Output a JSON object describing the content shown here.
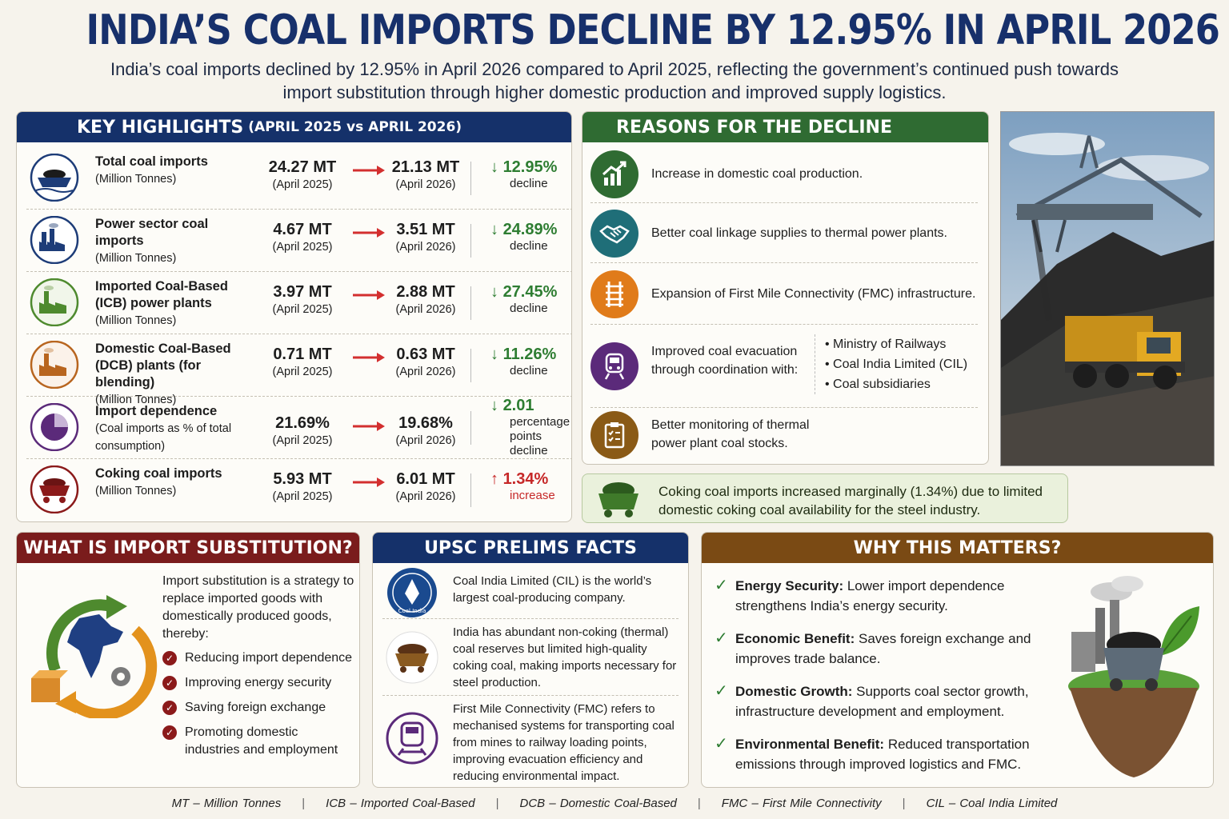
{
  "header": {
    "title": "INDIA’S COAL IMPORTS DECLINE BY 12.95% IN APRIL 2026",
    "subtitle": "India’s coal imports declined by 12.95% in April 2026 compared to April 2025, reflecting the government’s continued push towards import substitution through higher domestic production and improved supply logistics."
  },
  "highlights": {
    "title": "KEY HIGHLIGHTS",
    "period": "(APRIL 2025 vs APRIL 2026)",
    "rows": [
      {
        "label": "Total coal imports",
        "unit": "(Million Tonnes)",
        "v2025": "24.27 MT",
        "d2025": "(April 2025)",
        "v2026": "21.13 MT",
        "d2026": "(April 2026)",
        "change": "12.95%",
        "note": "decline",
        "direction": "down",
        "icon": "coal-ship-icon"
      },
      {
        "label": "Power sector coal imports",
        "unit": "(Million Tonnes)",
        "v2025": "4.67 MT",
        "d2025": "(April 2025)",
        "v2026": "3.51 MT",
        "d2026": "(April 2026)",
        "change": "24.89%",
        "note": "decline",
        "direction": "down",
        "icon": "power-plant-icon"
      },
      {
        "label": "Imported Coal-Based (ICB) power plants",
        "unit": "(Million Tonnes)",
        "v2025": "3.97 MT",
        "d2025": "(April 2025)",
        "v2026": "2.88 MT",
        "d2026": "(April 2026)",
        "change": "27.45%",
        "note": "decline",
        "direction": "down",
        "icon": "factory-icon"
      },
      {
        "label": "Domestic Coal-Based (DCB) plants (for blending)",
        "unit": "(Million Tonnes)",
        "v2025": "0.71 MT",
        "d2025": "(April 2025)",
        "v2026": "0.63 MT",
        "d2026": "(April 2026)",
        "change": "11.26%",
        "note": "decline",
        "direction": "down",
        "icon": "factory-icon"
      },
      {
        "label": "Import dependence",
        "unit": "(Coal imports as % of total consumption)",
        "v2025": "21.69%",
        "d2025": "(April 2025)",
        "v2026": "19.68%",
        "d2026": "(April 2026)",
        "change": "2.01",
        "note": "percentage points decline",
        "direction": "down",
        "icon": "pie-chart-icon"
      },
      {
        "label": "Coking coal imports",
        "unit": "(Million Tonnes)",
        "v2025": "5.93 MT",
        "d2025": "(April 2025)",
        "v2026": "6.01 MT",
        "d2026": "(April 2026)",
        "change": "1.34%",
        "note": "increase",
        "direction": "up",
        "icon": "coal-cart-icon"
      }
    ]
  },
  "reasons": {
    "title": "REASONS FOR THE DECLINE",
    "items": [
      {
        "text": "Increase in domestic coal production.",
        "icon": "growth-chart-icon"
      },
      {
        "text": "Better coal linkage supplies to thermal power plants.",
        "icon": "handshake-icon"
      },
      {
        "text": "Expansion of First Mile Connectivity (FMC) infrastructure.",
        "icon": "rail-track-icon"
      },
      {
        "text": "Improved coal evacuation through coordination with:",
        "icon": "train-icon",
        "list": [
          "Ministry of Railways",
          "Coal India Limited (CIL)",
          "Coal subsidiaries"
        ]
      },
      {
        "text": "Better monitoring of thermal power plant coal stocks.",
        "icon": "clipboard-icon"
      }
    ]
  },
  "coking_note": "Coking coal imports increased marginally (1.34%) due to limited domestic coking coal availability for the steel industry.",
  "import_substitution": {
    "title": "WHAT IS IMPORT SUBSTITUTION?",
    "intro": "Import substitution is a strategy to replace imported goods with domestically produced goods, thereby:",
    "points": [
      "Reducing import dependence",
      "Improving energy security",
      "Saving foreign exchange",
      "Promoting domestic industries and employment"
    ]
  },
  "upsc": {
    "title": "UPSC PRELIMS FACTS",
    "logo_text": "Coal India",
    "facts": [
      "Coal India Limited (CIL) is the world’s largest coal-producing company.",
      "India has abundant non-coking (thermal) coal reserves but limited high-quality coking coal, making imports necessary for steel production.",
      "First Mile Connectivity (FMC) refers to mechanised systems for transporting coal from mines to railway loading points, improving evacuation efficiency and reducing environmental impact."
    ]
  },
  "why": {
    "title": "WHY THIS MATTERS?",
    "items": [
      {
        "head": "Energy Security:",
        "text": "Lower import dependence strengthens India’s energy security."
      },
      {
        "head": "Economic Benefit:",
        "text": "Saves foreign exchange and improves trade balance."
      },
      {
        "head": "Domestic Growth:",
        "text": "Supports coal sector growth, infrastructure development and employment."
      },
      {
        "head": "Environmental Benefit:",
        "text": "Reduced transportation emissions through improved logistics and FMC."
      }
    ]
  },
  "footer": [
    "MT – Million Tonnes",
    "ICB – Imported Coal-Based",
    "DCB – Domestic Coal-Based",
    "FMC – First Mile Connectivity",
    "CIL – Coal India Limited"
  ],
  "colors": {
    "navy": "#15316a",
    "green": "#2f6b32",
    "maroon": "#7a1c1c",
    "brown": "#7a4a14",
    "decline": "#2e7d32",
    "increase": "#c62828"
  }
}
